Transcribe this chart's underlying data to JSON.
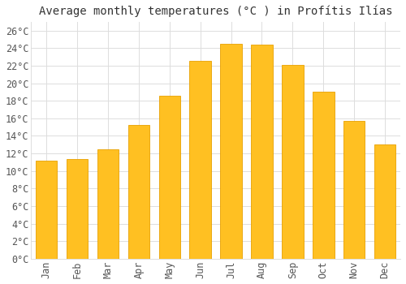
{
  "title": "Average monthly temperatures (°C ) in Profítis Ilías",
  "months": [
    "Jan",
    "Feb",
    "Mar",
    "Apr",
    "May",
    "Jun",
    "Jul",
    "Aug",
    "Sep",
    "Oct",
    "Nov",
    "Dec"
  ],
  "values": [
    11.2,
    11.4,
    12.5,
    15.2,
    18.6,
    22.5,
    24.5,
    24.4,
    22.1,
    19.0,
    15.7,
    13.0
  ],
  "bar_color": "#FFC022",
  "bar_edge_color": "#E8A000",
  "background_color": "#FFFFFF",
  "grid_color": "#DDDDDD",
  "text_color": "#555555",
  "title_color": "#333333",
  "ylim": [
    0,
    27
  ],
  "yticks": [
    0,
    2,
    4,
    6,
    8,
    10,
    12,
    14,
    16,
    18,
    20,
    22,
    24,
    26
  ],
  "title_fontsize": 10,
  "tick_fontsize": 8.5,
  "font_family": "monospace"
}
